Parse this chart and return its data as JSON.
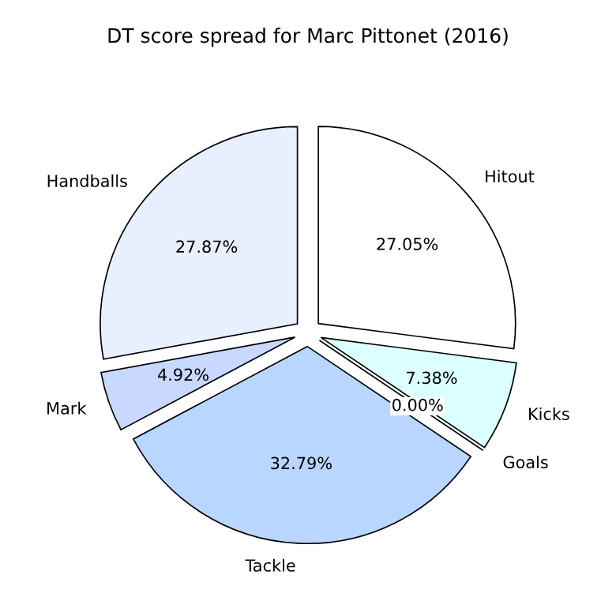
{
  "chart_data": {
    "type": "pie",
    "title": "DT score spread for Marc Pittonet (2016)",
    "categories": [
      "Hitout",
      "Kicks",
      "Goals",
      "Tackle",
      "Mark",
      "Handballs"
    ],
    "values": [
      27.05,
      7.38,
      0.0,
      32.79,
      4.92,
      27.87
    ],
    "value_labels": [
      "27.05%",
      "7.38%",
      "0.00%",
      "32.79%",
      "4.92%",
      "27.87%"
    ],
    "colors": [
      "#ffffff",
      "#dcffff",
      "#e0f0ff",
      "#b8d6ff",
      "#c8d8ff",
      "#e8f0ff"
    ],
    "legend": false
  }
}
